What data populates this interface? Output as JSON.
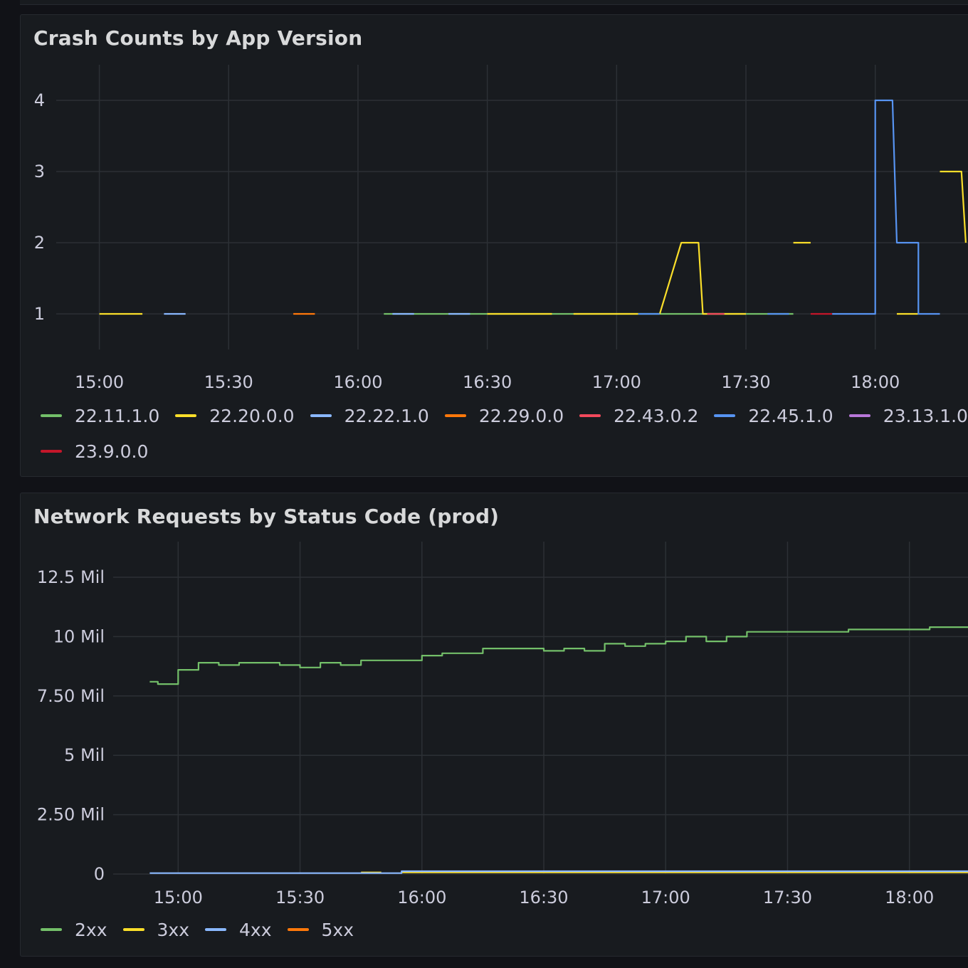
{
  "panels": {
    "crash": {
      "title": "Crash Counts by App Version"
    },
    "network": {
      "title": "Network Requests by Status Code (prod)"
    }
  },
  "colors": {
    "panel_bg": "#181b1f",
    "grid": "#2c3035",
    "text": "#ccccdc"
  },
  "chart_data": [
    {
      "type": "line",
      "title": "Crash Counts by App Version",
      "x_ticks": [
        "15:00",
        "15:30",
        "16:00",
        "16:30",
        "17:00",
        "17:30",
        "18:00"
      ],
      "y_ticks": [
        "1",
        "2",
        "3",
        "4"
      ],
      "y_tick_values": [
        1,
        2,
        3,
        4
      ],
      "xlim": [
        "14:50",
        "18:23"
      ],
      "ylim": [
        0.5,
        4.1
      ],
      "grid": true,
      "legend_position": "bottom",
      "series": [
        {
          "name": "22.11.1.0",
          "color": "#73bf69",
          "points": [
            [
              "16:06",
              1
            ],
            [
              "16:10",
              1
            ],
            [
              "17:37",
              1
            ],
            [
              "17:41",
              1
            ]
          ]
        },
        {
          "name": "22.20.0.0",
          "color": "#fade2a",
          "points": [
            [
              "15:00",
              1
            ],
            [
              "15:10",
              1
            ],
            null,
            [
              "16:30",
              1
            ],
            [
              "16:45",
              1
            ],
            null,
            [
              "16:50",
              1
            ],
            [
              "17:05",
              1
            ],
            null,
            [
              "17:10",
              1
            ],
            [
              "17:15",
              2
            ],
            [
              "17:19",
              2
            ],
            [
              "17:20",
              1
            ],
            [
              "17:30",
              1
            ],
            null,
            [
              "17:41",
              2
            ],
            [
              "17:45",
              2
            ],
            null,
            [
              "18:05",
              1
            ],
            [
              "18:10",
              1
            ],
            null,
            [
              "18:15",
              3
            ],
            [
              "18:20",
              3
            ],
            [
              "18:21",
              2
            ]
          ]
        },
        {
          "name": "22.22.1.0",
          "color": "#8ab8ff",
          "points": [
            [
              "15:15",
              1
            ],
            [
              "15:20",
              1
            ],
            null,
            [
              "16:08",
              1
            ],
            [
              "16:13",
              1
            ],
            null,
            [
              "16:21",
              1
            ],
            [
              "16:26",
              1
            ]
          ]
        },
        {
          "name": "22.29.0.0",
          "color": "#ff780a",
          "points": [
            [
              "15:45",
              1
            ],
            [
              "15:50",
              1
            ]
          ]
        },
        {
          "name": "22.43.0.2",
          "color": "#f2495c",
          "points": [
            [
              "17:21",
              1
            ],
            [
              "17:25",
              1
            ]
          ]
        },
        {
          "name": "22.45.1.0",
          "color": "#5794f2",
          "points": [
            [
              "17:05",
              1
            ],
            [
              "17:10",
              1
            ],
            null,
            [
              "17:35",
              1
            ],
            [
              "17:40",
              1
            ],
            null,
            [
              "17:50",
              1
            ],
            [
              "18:00",
              1
            ],
            [
              "18:00",
              4
            ],
            [
              "18:04",
              4
            ],
            [
              "18:05",
              2
            ],
            [
              "18:10",
              2
            ],
            [
              "18:10",
              1
            ],
            [
              "18:15",
              1
            ]
          ]
        },
        {
          "name": "23.13.1.0",
          "color": "#b877d9",
          "points": []
        },
        {
          "name": "23.9.0.0",
          "color": "#c4162a",
          "points": [
            [
              "17:45",
              1
            ],
            [
              "17:50",
              1
            ]
          ]
        }
      ]
    },
    {
      "type": "line",
      "title": "Network Requests by Status Code (prod)",
      "x_ticks": [
        "15:00",
        "15:30",
        "16:00",
        "16:30",
        "17:00",
        "17:30",
        "18:00"
      ],
      "y_ticks": [
        "0",
        "2.50 Mil",
        "5 Mil",
        "7.50 Mil",
        "10 Mil",
        "12.5 Mil"
      ],
      "y_tick_values": [
        0,
        2.5,
        5,
        7.5,
        10,
        12.5
      ],
      "y_unit": "Mil",
      "xlim": [
        "14:44",
        "18:16"
      ],
      "ylim": [
        0,
        12.8
      ],
      "grid": true,
      "legend_position": "bottom",
      "series": [
        {
          "name": "2xx",
          "color": "#73bf69",
          "points": [
            [
              "14:53",
              8.1
            ],
            [
              "14:55",
              8.1
            ],
            [
              "14:55",
              8.0
            ],
            [
              "15:00",
              8.0
            ],
            [
              "15:00",
              8.6
            ],
            [
              "15:05",
              8.6
            ],
            [
              "15:05",
              8.9
            ],
            [
              "15:10",
              8.9
            ],
            [
              "15:10",
              8.8
            ],
            [
              "15:15",
              8.8
            ],
            [
              "15:15",
              8.9
            ],
            [
              "15:25",
              8.9
            ],
            [
              "15:25",
              8.8
            ],
            [
              "15:30",
              8.8
            ],
            [
              "15:30",
              8.7
            ],
            [
              "15:35",
              8.7
            ],
            [
              "15:35",
              8.9
            ],
            [
              "15:40",
              8.9
            ],
            [
              "15:40",
              8.8
            ],
            [
              "15:45",
              8.8
            ],
            [
              "15:45",
              9.0
            ],
            [
              "16:00",
              9.0
            ],
            [
              "16:00",
              9.2
            ],
            [
              "16:05",
              9.2
            ],
            [
              "16:05",
              9.3
            ],
            [
              "16:15",
              9.3
            ],
            [
              "16:15",
              9.5
            ],
            [
              "16:30",
              9.5
            ],
            [
              "16:30",
              9.4
            ],
            [
              "16:35",
              9.4
            ],
            [
              "16:35",
              9.5
            ],
            [
              "16:40",
              9.5
            ],
            [
              "16:40",
              9.4
            ],
            [
              "16:45",
              9.4
            ],
            [
              "16:45",
              9.7
            ],
            [
              "16:50",
              9.7
            ],
            [
              "16:50",
              9.6
            ],
            [
              "16:55",
              9.6
            ],
            [
              "16:55",
              9.7
            ],
            [
              "17:00",
              9.7
            ],
            [
              "17:00",
              9.8
            ],
            [
              "17:05",
              9.8
            ],
            [
              "17:05",
              10.0
            ],
            [
              "17:10",
              10.0
            ],
            [
              "17:10",
              9.8
            ],
            [
              "17:15",
              9.8
            ],
            [
              "17:15",
              10.0
            ],
            [
              "17:20",
              10.0
            ],
            [
              "17:20",
              10.2
            ],
            [
              "17:45",
              10.2
            ],
            [
              "17:45",
              10.3
            ],
            [
              "18:05",
              10.3
            ],
            [
              "18:05",
              10.4
            ],
            [
              "18:16",
              10.4
            ]
          ]
        },
        {
          "name": "3xx",
          "color": "#fade2a",
          "points": [
            [
              "15:45",
              0.07
            ],
            [
              "15:50",
              0.07
            ],
            null,
            [
              "15:55",
              0.07
            ],
            [
              "18:16",
              0.07
            ]
          ]
        },
        {
          "name": "4xx",
          "color": "#8ab8ff",
          "points": [
            [
              "14:53",
              0.04
            ],
            [
              "15:55",
              0.04
            ],
            [
              "15:55",
              0.12
            ],
            [
              "18:16",
              0.12
            ]
          ]
        },
        {
          "name": "5xx",
          "color": "#ff780a",
          "points": []
        }
      ]
    }
  ]
}
